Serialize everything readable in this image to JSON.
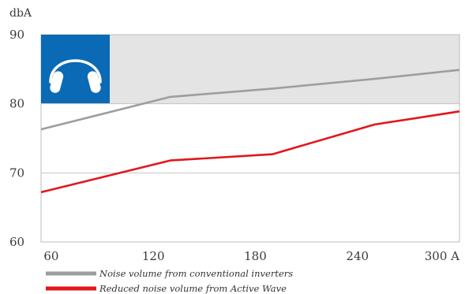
{
  "chart_data": {
    "type": "line",
    "ylabel": "dbA",
    "x_ticks": [
      "60",
      "120",
      "180",
      "240",
      "300 A"
    ],
    "y_ticks": [
      "60",
      "70",
      "80",
      "90"
    ],
    "xlim": [
      54,
      300
    ],
    "ylim": [
      60,
      90
    ],
    "grid": true,
    "shaded_band": {
      "from": 80,
      "to": 90,
      "color": "#e4e4e4"
    },
    "x": [
      54,
      130,
      190,
      250,
      300
    ],
    "series": [
      {
        "name": "Noise volume from conventional inverters",
        "color": "#9e9e9e",
        "values": [
          76.3,
          81.0,
          82.2,
          83.6,
          84.9
        ]
      },
      {
        "name": "Reduced noise volume from Active Wave",
        "color": "#e2161b",
        "values": [
          67.2,
          71.8,
          72.7,
          77.0,
          78.9
        ]
      }
    ],
    "legend_position": "bottom-left"
  },
  "icon": {
    "name": "headphones-icon",
    "background": "#0a6ab5",
    "foreground": "#ffffff"
  }
}
